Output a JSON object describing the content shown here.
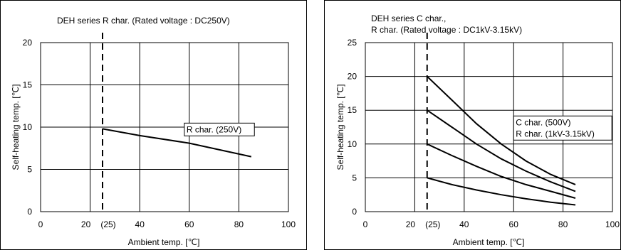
{
  "chart_data": [
    {
      "type": "line",
      "title": "DEH series R char. (Rated voltage : DC250V)",
      "xlabel": "Ambient temp. [℃]",
      "ylabel": "Self-heating temp. [℃]",
      "xlim": [
        0,
        100
      ],
      "ylim": [
        0,
        20
      ],
      "xticks": [
        {
          "value": 0,
          "label": "0"
        },
        {
          "value": 20,
          "label": "20"
        },
        {
          "value": 25,
          "label": "(25)"
        },
        {
          "value": 40,
          "label": "40"
        },
        {
          "value": 60,
          "label": "60"
        },
        {
          "value": 80,
          "label": "80"
        },
        {
          "value": 100,
          "label": "100"
        }
      ],
      "yticks": [
        0,
        5,
        10,
        15,
        20
      ],
      "xgrid": [
        20,
        40,
        60,
        80
      ],
      "ygrid": [
        5,
        10,
        15
      ],
      "marker_line": 25,
      "series": [
        {
          "name": "R char. (250V)",
          "x": [
            25,
            40,
            60,
            85
          ],
          "y": [
            9.8,
            9.0,
            8.1,
            6.5
          ]
        }
      ],
      "annotations": [
        {
          "lines": [
            "R char. (250V)"
          ],
          "x": 58,
          "y": 9.3
        }
      ]
    },
    {
      "type": "line",
      "title": "DEH series C char.,\nR char. (Rated voltage : DC1kV-3.15kV)",
      "xlabel": "Ambient temp. [℃]",
      "ylabel": "Self-heating temp. [℃]",
      "xlim": [
        0,
        100
      ],
      "ylim": [
        0,
        25
      ],
      "xticks": [
        {
          "value": 0,
          "label": "0"
        },
        {
          "value": 20,
          "label": "20"
        },
        {
          "value": 25,
          "label": "(25)"
        },
        {
          "value": 40,
          "label": "40"
        },
        {
          "value": 60,
          "label": "60"
        },
        {
          "value": 80,
          "label": "80"
        },
        {
          "value": 100,
          "label": "100"
        }
      ],
      "yticks": [
        0,
        5,
        10,
        15,
        20,
        25
      ],
      "xgrid": [
        20,
        40,
        60,
        80
      ],
      "ygrid": [
        5,
        10,
        15,
        20
      ],
      "marker_line": 25,
      "series": [
        {
          "x": [
            25,
            35,
            45,
            55,
            65,
            75,
            85
          ],
          "y": [
            20,
            16.5,
            13,
            10,
            7.5,
            5.5,
            4
          ]
        },
        {
          "x": [
            25,
            35,
            45,
            55,
            65,
            75,
            85
          ],
          "y": [
            15,
            12.5,
            10,
            7.8,
            6,
            4.4,
            3
          ]
        },
        {
          "x": [
            25,
            35,
            45,
            55,
            65,
            75,
            85
          ],
          "y": [
            10,
            8.3,
            6.7,
            5.2,
            4,
            3,
            2
          ]
        },
        {
          "x": [
            25,
            35,
            45,
            55,
            65,
            75,
            85
          ],
          "y": [
            5,
            4,
            3.2,
            2.5,
            1.9,
            1.4,
            1
          ]
        }
      ],
      "annotations": [
        {
          "lines": [
            "C char. (500V)",
            "R char. (1kV-3.15kV)"
          ],
          "x": 60,
          "y": 11
        }
      ]
    }
  ]
}
